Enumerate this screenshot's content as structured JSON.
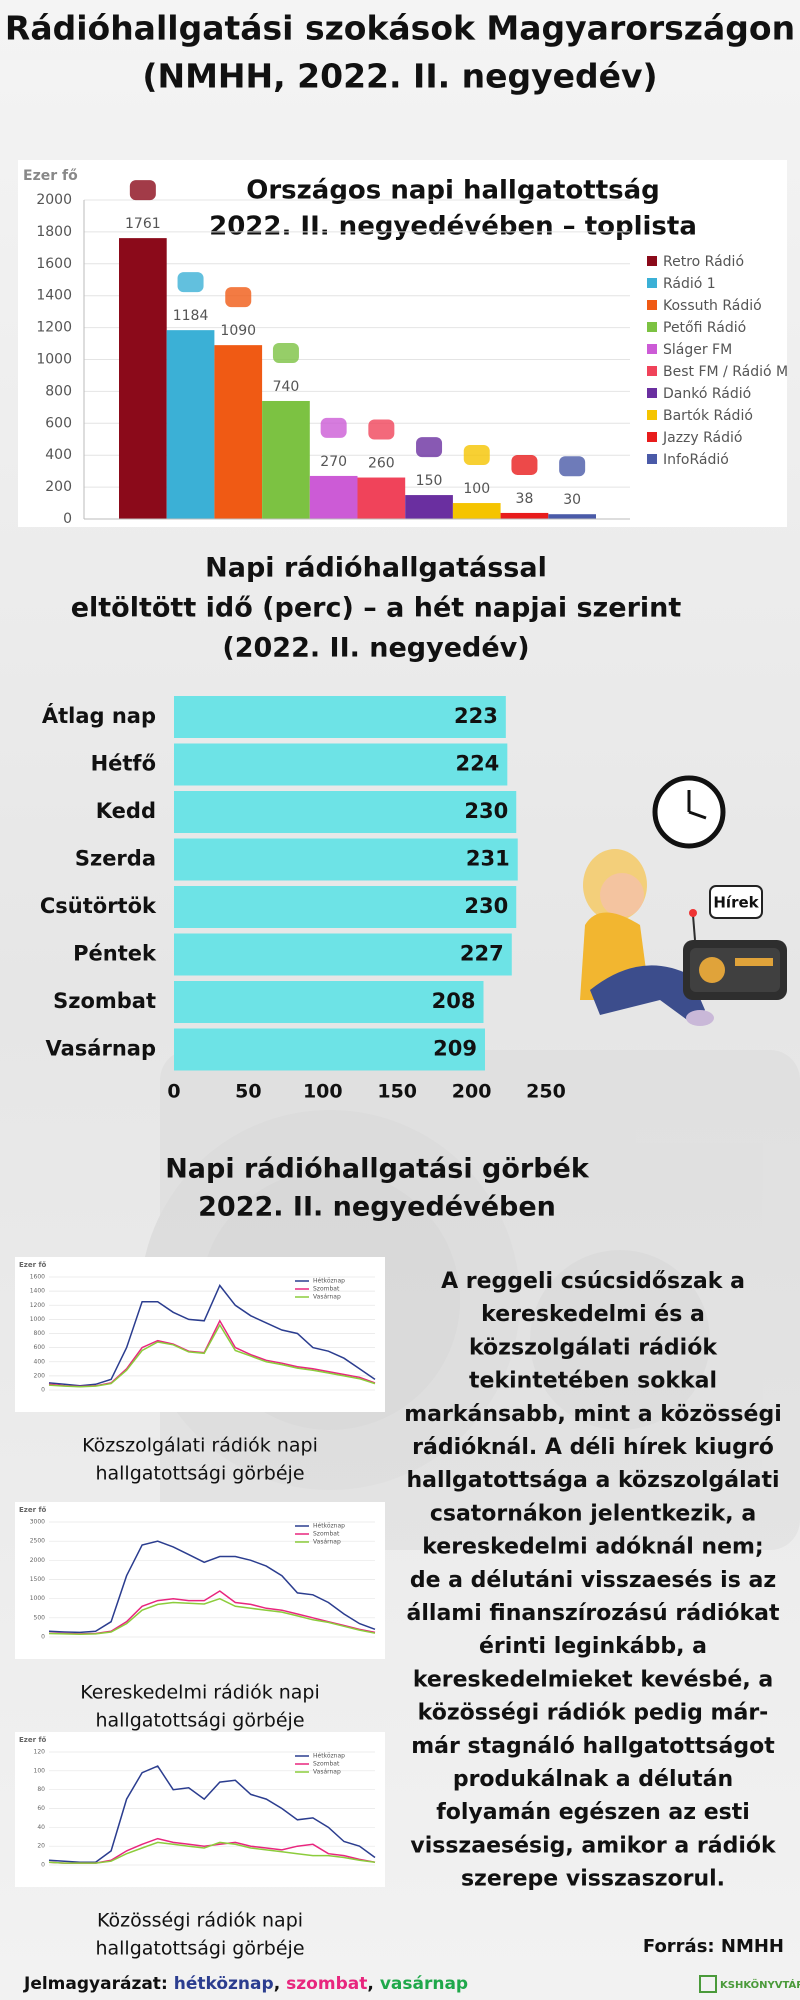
{
  "title": [
    "Rádióhallgatási szokások Magyarországon",
    "(NMHH, 2022. II. negyedév)"
  ],
  "chart_data": [
    {
      "type": "bar",
      "title": [
        "Országos napi hallgatottság",
        "2022. II. negyedévében – toplista"
      ],
      "y_label": "Ezer fő",
      "categories": [
        "Retro Rádió",
        "Rádió 1",
        "Kossuth Rádió",
        "Petőfi Rádió",
        "Sláger FM",
        "Best FM / Rádió M",
        "Dankó Rádió",
        "Bartók Rádió",
        "Jazzy Rádió",
        "InfoRádió"
      ],
      "values": [
        1761,
        1184,
        1090,
        740,
        270,
        260,
        150,
        100,
        38,
        30
      ],
      "colors": [
        "#8b0a1a",
        "#3bb0d6",
        "#f05a14",
        "#7cc242",
        "#cc5bd6",
        "#f0435a",
        "#6a2fa0",
        "#f5c400",
        "#e81c1c",
        "#4a5aa8"
      ],
      "ylim": [
        0,
        2000
      ],
      "yticks": [
        0,
        200,
        400,
        600,
        800,
        1000,
        1200,
        1400,
        1600,
        1800,
        2000
      ],
      "grid": true,
      "legend": "right"
    },
    {
      "type": "barh",
      "title": [
        "Napi rádióhallgatással",
        "eltöltött idő (perc) – a hét napjai szerint",
        "(2022. II. negyedév)"
      ],
      "categories": [
        "Átlag nap",
        "Hétfő",
        "Kedd",
        "Szerda",
        "Csütörtök",
        "Péntek",
        "Szombat",
        "Vasárnap"
      ],
      "values": [
        223,
        224,
        230,
        231,
        230,
        227,
        208,
        209
      ],
      "color": "#6de3e6",
      "xlim": [
        0,
        250
      ],
      "xticks": [
        0,
        50,
        100,
        150,
        200,
        250
      ],
      "grid": false
    },
    {
      "type": "line",
      "y_label": "Ezer fő",
      "caption": [
        "Közszolgálati rádiók napi",
        "hallgatottsági görbéje"
      ],
      "categories": [
        null,
        null,
        null,
        null,
        null,
        null,
        null,
        null,
        null,
        null,
        null,
        null,
        null,
        null,
        null,
        null,
        null,
        null,
        null,
        null,
        null,
        null
      ],
      "series": [
        {
          "name": "Hétköznap",
          "color": "#2b3d8f",
          "values": [
            100,
            80,
            60,
            80,
            150,
            600,
            1250,
            1250,
            1100,
            1000,
            980,
            1480,
            1200,
            1050,
            950,
            850,
            800,
            600,
            550,
            450,
            300,
            150
          ]
        },
        {
          "name": "Szombat",
          "color": "#e8267e",
          "values": [
            80,
            60,
            50,
            60,
            100,
            300,
            600,
            700,
            650,
            550,
            530,
            980,
            600,
            500,
            420,
            380,
            330,
            300,
            260,
            220,
            180,
            100
          ]
        },
        {
          "name": "Vasárnap",
          "color": "#8ccc3c",
          "values": [
            70,
            55,
            45,
            55,
            90,
            280,
            560,
            680,
            640,
            540,
            520,
            920,
            560,
            480,
            400,
            360,
            310,
            280,
            240,
            200,
            160,
            90
          ]
        }
      ],
      "ylim": [
        0,
        1600
      ],
      "yticks": [
        0,
        200,
        400,
        600,
        800,
        1000,
        1200,
        1400,
        1600
      ],
      "grid": true
    },
    {
      "type": "line",
      "y_label": "Ezer fő",
      "caption": [
        "Kereskedelmi  rádiók napi",
        "hallgatottsági görbéje"
      ],
      "categories": [
        null,
        null,
        null,
        null,
        null,
        null,
        null,
        null,
        null,
        null,
        null,
        null,
        null,
        null,
        null,
        null,
        null,
        null,
        null,
        null,
        null,
        null
      ],
      "series": [
        {
          "name": "Hétköznap",
          "color": "#2b3d8f",
          "values": [
            150,
            130,
            120,
            150,
            400,
            1600,
            2400,
            2500,
            2350,
            2150,
            1950,
            2100,
            2100,
            2000,
            1850,
            1600,
            1150,
            1100,
            900,
            600,
            350,
            200
          ]
        },
        {
          "name": "Szombat",
          "color": "#e8267e",
          "values": [
            100,
            90,
            80,
            90,
            150,
            400,
            800,
            950,
            1000,
            950,
            950,
            1200,
            900,
            850,
            750,
            700,
            600,
            500,
            400,
            300,
            200,
            120
          ]
        },
        {
          "name": "Vasárnap",
          "color": "#8ccc3c",
          "values": [
            90,
            80,
            70,
            80,
            130,
            350,
            700,
            850,
            900,
            880,
            860,
            1000,
            800,
            750,
            700,
            650,
            550,
            450,
            380,
            280,
            180,
            100
          ]
        }
      ],
      "ylim": [
        0,
        3000
      ],
      "yticks": [
        0,
        500,
        1000,
        1500,
        2000,
        2500,
        3000
      ],
      "grid": true
    },
    {
      "type": "line",
      "y_label": "Ezer fő",
      "caption": [
        "Közösségi rádiók napi",
        "hallgatottsági görbéje"
      ],
      "categories": [
        null,
        null,
        null,
        null,
        null,
        null,
        null,
        null,
        null,
        null,
        null,
        null,
        null,
        null,
        null,
        null,
        null,
        null,
        null,
        null,
        null,
        null
      ],
      "series": [
        {
          "name": "Hétköznap",
          "color": "#2b3d8f",
          "values": [
            5,
            4,
            3,
            3,
            15,
            70,
            98,
            105,
            80,
            82,
            70,
            88,
            90,
            75,
            70,
            60,
            48,
            50,
            40,
            25,
            20,
            8
          ]
        },
        {
          "name": "Szombat",
          "color": "#e8267e",
          "values": [
            3,
            2,
            2,
            2,
            5,
            15,
            22,
            28,
            24,
            22,
            20,
            22,
            24,
            20,
            18,
            16,
            20,
            22,
            12,
            10,
            6,
            3
          ]
        },
        {
          "name": "Vasárnap",
          "color": "#8ccc3c",
          "values": [
            3,
            2,
            2,
            2,
            4,
            12,
            18,
            24,
            22,
            20,
            18,
            24,
            22,
            18,
            16,
            14,
            12,
            10,
            10,
            8,
            5,
            3
          ]
        }
      ],
      "ylim": [
        0,
        120
      ],
      "yticks": [
        0,
        20,
        40,
        60,
        80,
        100,
        120
      ],
      "grid": true
    }
  ],
  "section_title": [
    "Napi rádióhallgatási görbék",
    "2022. II. negyedévében"
  ],
  "bubble": "Hírek",
  "paragraph": [
    "A reggeli csúcsidőszak a",
    "kereskedelmi és a",
    "közszolgálati rádiók",
    "tekintetében sokkal",
    "markánsabb, mint a közösségi",
    "rádióknál. A déli hírek kiugró",
    "hallgatottsága a közszolgálati",
    "csatornákon jelentkezik, a",
    "kereskedelmi adóknál nem;",
    "de a délutáni visszaesés is az",
    "állami finanszírozású rádiókat",
    "érinti leginkább, a",
    "kereskedelmieket kevésbé, a",
    "közösségi rádiók pedig már-",
    "már stagnáló hallgatottságot",
    "produkálnak a délután",
    "folyamán egészen az esti",
    "visszaesésig, amikor a rádiók",
    "szerepe visszaszorul."
  ],
  "source": "Forrás: NMHH",
  "legend_note": {
    "label": "Jelmagyarázat:",
    "separator": ",",
    "items": [
      {
        "name": "hétköznap",
        "color": "#2b3d8f"
      },
      {
        "name": "szombat",
        "color": "#e8267e"
      },
      {
        "name": "vasárnap",
        "color": "#1fa84a"
      }
    ]
  },
  "logo": "KSHKÖNYVTÁR"
}
